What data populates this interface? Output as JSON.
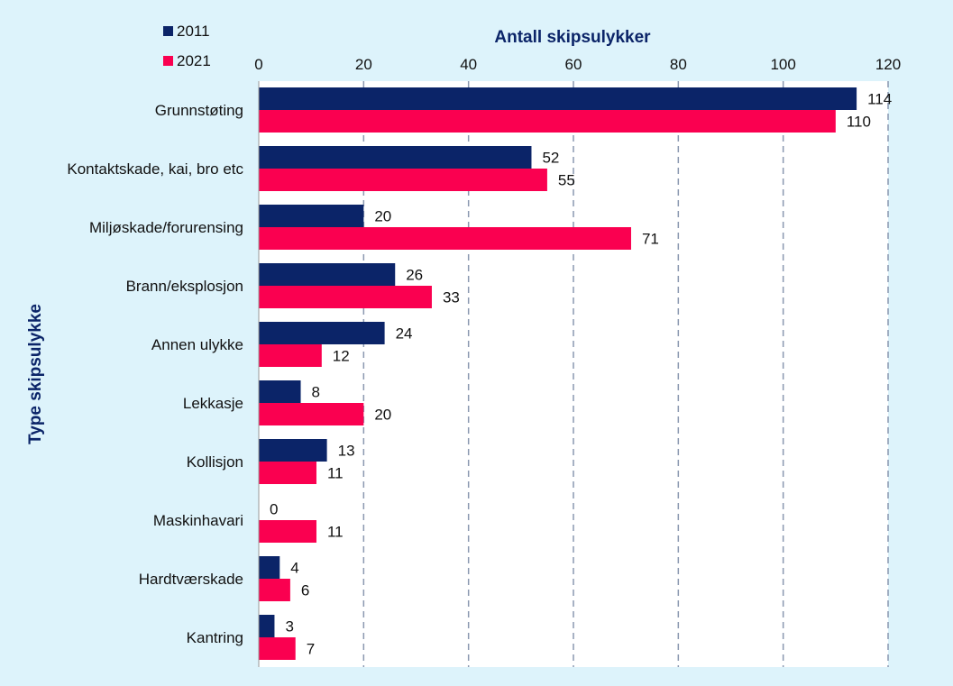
{
  "chart_data": {
    "type": "bar",
    "orientation": "horizontal",
    "xlabel": "Antall skipsulykker",
    "ylabel": "Type skipsulykke",
    "xlim": [
      0,
      120
    ],
    "xticks": [
      "0",
      "20",
      "40",
      "60",
      "80",
      "100",
      "120"
    ],
    "grid": true,
    "legend_position": "top-left",
    "categories": [
      "Grunnstøting",
      "Kontaktskade, kai, bro etc",
      "Miljøskade/forurensing",
      "Brann/eksplosjon",
      "Annen ulykke",
      "Lekkasje",
      "Kollisjon",
      "Maskinhavari",
      "Hardtværskade",
      "Kantring"
    ],
    "series": [
      {
        "name": "2011",
        "color": "#0b2468",
        "values": [
          114,
          52,
          20,
          26,
          24,
          8,
          13,
          0,
          4,
          3
        ]
      },
      {
        "name": "2021",
        "color": "#fa0050",
        "values": [
          110,
          55,
          71,
          33,
          12,
          20,
          11,
          11,
          6,
          7
        ]
      }
    ]
  }
}
